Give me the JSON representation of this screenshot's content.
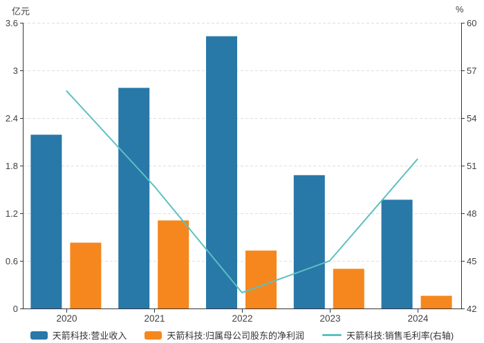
{
  "chart_data": {
    "type": "bar+line",
    "title": "",
    "categories": [
      "2020",
      "2021",
      "2022",
      "2023",
      "2024"
    ],
    "bar_series": [
      {
        "name": "天箭科技:营业收入",
        "color": "#2878a8",
        "axis": "left",
        "values": [
          2.19,
          2.78,
          3.43,
          1.68,
          1.37
        ]
      },
      {
        "name": "天箭科技:归属母公司股东的净利润",
        "color": "#f5871e",
        "axis": "left",
        "values": [
          0.83,
          1.11,
          0.73,
          0.5,
          0.16
        ]
      }
    ],
    "line_series": [
      {
        "name": "天箭科技:销售毛利率(右轴)",
        "color": "#5bc0c2",
        "axis": "right",
        "values": [
          55.7,
          49.7,
          43.0,
          45.0,
          51.4
        ]
      }
    ],
    "left_axis": {
      "title": "亿元",
      "min": 0,
      "max": 3.6,
      "ticks": [
        0,
        0.6,
        1.2,
        1.8,
        2.4,
        3,
        3.6
      ],
      "tick_labels": [
        "0",
        "0.6",
        "1.2",
        "1.8",
        "2.4",
        "3",
        "3.6"
      ]
    },
    "right_axis": {
      "title": "%",
      "min": 42,
      "max": 60,
      "ticks": [
        42,
        45,
        48,
        51,
        54,
        57,
        60
      ],
      "tick_labels": [
        "42",
        "45",
        "48",
        "51",
        "54",
        "57",
        "60"
      ]
    },
    "grid": true,
    "legend_position": "bottom",
    "colors": {
      "grid_line": "#dedede",
      "axis_line": "#333333",
      "tick_text": "#404040"
    }
  }
}
